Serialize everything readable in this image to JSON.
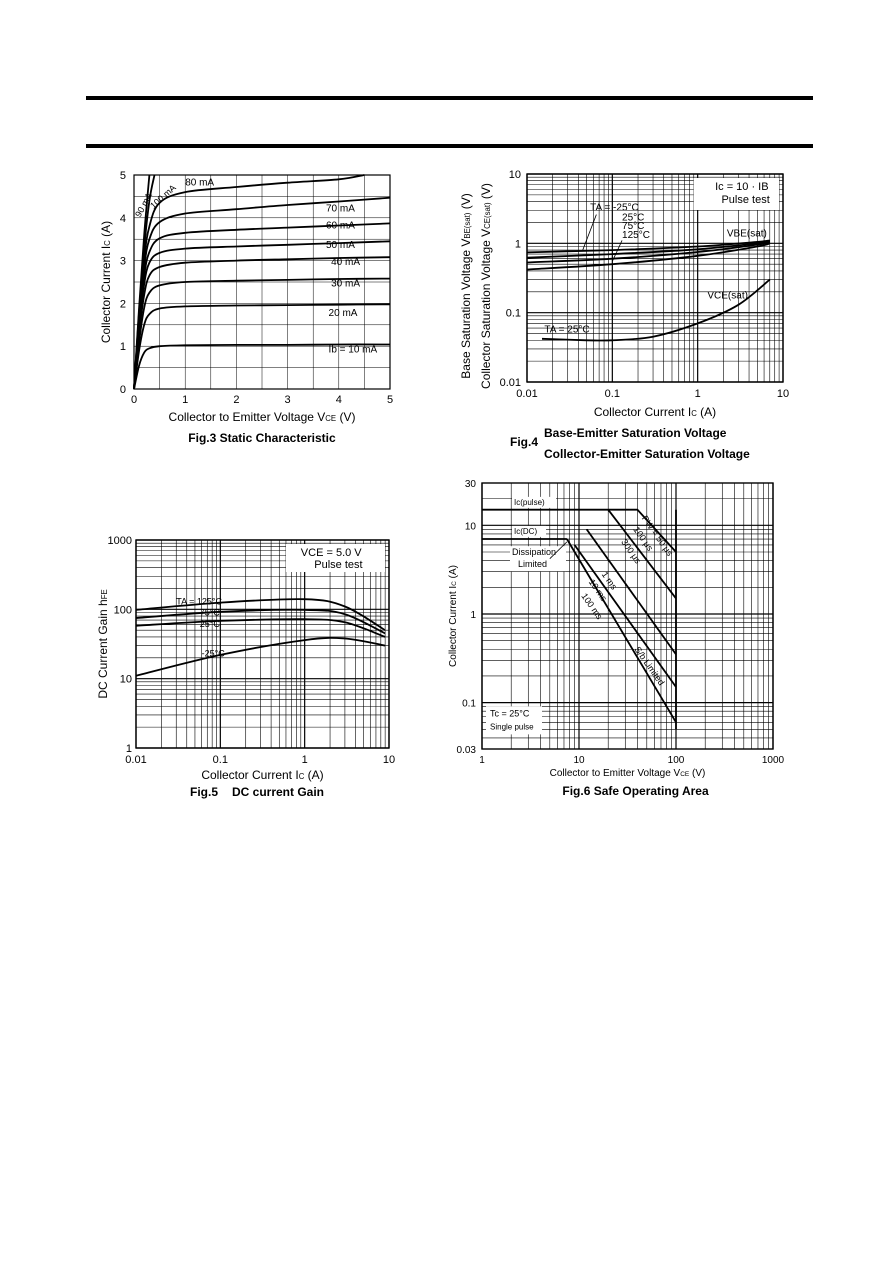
{
  "chart_data": [
    {
      "type": "line",
      "caption": "Fig.3 Static Characteristic",
      "xlabel": "Collector to Emitter Voltage  V",
      "xlabel_sub": "CE",
      "xlabel_unit": "(V)",
      "ylabel": "Collector Current  I",
      "ylabel_sub": "C",
      "ylabel_unit": "(A)",
      "xlim": [
        0,
        5
      ],
      "ylim": [
        0,
        5
      ],
      "x_ticks": [
        0,
        1,
        2,
        3,
        4,
        5
      ],
      "y_ticks": [
        0,
        1,
        2,
        3,
        4,
        5
      ],
      "series": [
        {
          "name": "Ib = 10 mA",
          "x": [
            0,
            0.1,
            0.2,
            0.3,
            0.5,
            1,
            2,
            3,
            4,
            5
          ],
          "y": [
            0,
            0.55,
            0.85,
            0.95,
            1.0,
            1.02,
            1.03,
            1.03,
            1.04,
            1.04
          ]
        },
        {
          "name": "20 mA",
          "x": [
            0,
            0.1,
            0.2,
            0.3,
            0.5,
            1,
            2,
            3,
            4,
            5
          ],
          "y": [
            0,
            0.9,
            1.5,
            1.75,
            1.88,
            1.93,
            1.95,
            1.96,
            1.97,
            1.98
          ]
        },
        {
          "name": "30 mA",
          "x": [
            0,
            0.1,
            0.2,
            0.3,
            0.5,
            1,
            2,
            3,
            4,
            5
          ],
          "y": [
            0,
            1.1,
            1.9,
            2.25,
            2.42,
            2.5,
            2.53,
            2.55,
            2.57,
            2.58
          ]
        },
        {
          "name": "40 mA",
          "x": [
            0,
            0.1,
            0.2,
            0.3,
            0.5,
            1,
            2,
            3,
            4,
            5
          ],
          "y": [
            0,
            1.3,
            2.2,
            2.65,
            2.85,
            2.95,
            3.0,
            3.03,
            3.06,
            3.08
          ]
        },
        {
          "name": "50 mA",
          "x": [
            0,
            0.1,
            0.2,
            0.3,
            0.5,
            1,
            2,
            3,
            4,
            5
          ],
          "y": [
            0,
            1.4,
            2.45,
            2.95,
            3.18,
            3.28,
            3.33,
            3.37,
            3.41,
            3.45
          ]
        },
        {
          "name": "60 mA",
          "x": [
            0,
            0.1,
            0.2,
            0.3,
            0.5,
            1,
            2,
            3,
            4,
            5
          ],
          "y": [
            0,
            1.5,
            2.65,
            3.2,
            3.52,
            3.65,
            3.72,
            3.77,
            3.82,
            3.87
          ]
        },
        {
          "name": "70 mA",
          "x": [
            0,
            0.1,
            0.2,
            0.3,
            0.5,
            1,
            2,
            3,
            4,
            5
          ],
          "y": [
            0,
            1.6,
            2.85,
            3.5,
            3.9,
            4.1,
            4.2,
            4.3,
            4.38,
            4.47
          ]
        },
        {
          "name": "80 mA",
          "x": [
            0,
            0.1,
            0.2,
            0.3,
            0.5,
            1,
            2,
            3,
            4,
            4.5
          ],
          "y": [
            0,
            1.7,
            3.05,
            3.8,
            4.35,
            4.6,
            4.72,
            4.82,
            4.9,
            5.0
          ]
        },
        {
          "name": "90 mA",
          "x": [
            0,
            0.1,
            0.2,
            0.3,
            0.4
          ],
          "y": [
            0,
            1.8,
            3.3,
            4.4,
            5.0
          ]
        },
        {
          "name": "100 mA",
          "x": [
            0,
            0.1,
            0.2,
            0.3
          ],
          "y": [
            0,
            1.9,
            3.6,
            5.0
          ]
        }
      ],
      "labels": [
        "Ib = 10 mA",
        "20 mA",
        "30 mA",
        "40 mA",
        "50 mA",
        "60 mA",
        "70 mA",
        "80 mA",
        "90 mA",
        "100 mA"
      ]
    },
    {
      "type": "line",
      "caption_fig": "Fig.4",
      "caption_line1": "Base-Emitter Saturation Voltage",
      "caption_line2": "Collector-Emitter Saturation Voltage",
      "xlabel": "Collector Current  I",
      "xlabel_sub": "C",
      "xlabel_unit": "(A)",
      "ylabel_outer": "Collector Saturation Voltage  V",
      "ylabel_outer_sub": "CE(sat)",
      "ylabel_outer_unit": "(V)",
      "ylabel_inner": "Base Saturation Voltage  V",
      "ylabel_inner_sub": "BE(sat)",
      "ylabel_inner_unit": "(V)",
      "xscale": "log",
      "yscale": "log",
      "xlim": [
        0.01,
        10
      ],
      "ylim": [
        0.01,
        10
      ],
      "x_ticks": [
        "0.01",
        "0.1",
        "1",
        "10"
      ],
      "y_ticks": [
        "0.01",
        "0.1",
        "1",
        "10"
      ],
      "legend_line1": "Ic = 10 · IB",
      "legend_line2": "Pulse test",
      "temp_labels": [
        "TA = -25°C",
        "25°C",
        "75°C",
        "125°C"
      ],
      "curve_label_vbe": "VBE(sat)",
      "curve_label_vce": "VCE(sat)",
      "curve_label_ta": "TA = 25°C",
      "series": [
        {
          "name": "VBE(sat) TA = -25°C",
          "x": [
            0.01,
            0.1,
            1,
            5,
            7
          ],
          "y": [
            0.74,
            0.8,
            0.9,
            1.05,
            1.1
          ]
        },
        {
          "name": "VBE(sat) 25°C",
          "x": [
            0.01,
            0.1,
            1,
            5,
            7
          ],
          "y": [
            0.62,
            0.7,
            0.82,
            1.0,
            1.06
          ]
        },
        {
          "name": "VBE(sat) 75°C",
          "x": [
            0.01,
            0.1,
            1,
            5,
            7
          ],
          "y": [
            0.53,
            0.6,
            0.75,
            0.96,
            1.03
          ]
        },
        {
          "name": "VBE(sat) 125°C",
          "x": [
            0.01,
            0.1,
            1,
            5,
            7
          ],
          "y": [
            0.42,
            0.5,
            0.66,
            0.9,
            1.0
          ]
        },
        {
          "name": "VCE(sat) TA = 25°C",
          "x": [
            0.015,
            0.05,
            0.1,
            0.3,
            1,
            3,
            7
          ],
          "y": [
            0.042,
            0.04,
            0.04,
            0.045,
            0.07,
            0.13,
            0.3
          ]
        }
      ]
    },
    {
      "type": "line",
      "caption_fig": "Fig.5",
      "caption_text": "DC current Gain",
      "xlabel": "Collector Current  I",
      "xlabel_sub": "C",
      "xlabel_unit": "(A)",
      "ylabel": "DC Current Gain  h",
      "ylabel_sub": "FE",
      "xscale": "log",
      "yscale": "log",
      "xlim": [
        0.01,
        10
      ],
      "ylim": [
        1,
        1000
      ],
      "x_ticks": [
        "0.01",
        "0.1",
        "1",
        "10"
      ],
      "y_ticks": [
        "1",
        "10",
        "100",
        "1000"
      ],
      "legend_line1": "VCE = 5.0 V",
      "legend_line2": "Pulse test",
      "temp_labels": [
        "TA = 125°C",
        "75°C",
        "25°C",
        "-25°C"
      ],
      "series": [
        {
          "name": "TA = 125°C",
          "x": [
            0.01,
            0.1,
            1,
            3,
            9
          ],
          "y": [
            98,
            125,
            140,
            110,
            50
          ]
        },
        {
          "name": "75°C",
          "x": [
            0.01,
            0.1,
            1,
            3,
            9
          ],
          "y": [
            75,
            92,
            98,
            85,
            45
          ]
        },
        {
          "name": "25°C",
          "x": [
            0.01,
            0.1,
            1,
            3,
            9
          ],
          "y": [
            58,
            68,
            72,
            65,
            40
          ]
        },
        {
          "name": "-25°C",
          "x": [
            0.01,
            0.1,
            1,
            3,
            9
          ],
          "y": [
            11,
            22,
            36,
            38,
            30
          ]
        }
      ]
    },
    {
      "type": "line",
      "caption": "Fig.6  Safe Operating Area",
      "xlabel": "Collector to Emitter Voltage  V",
      "xlabel_sub": "CE",
      "xlabel_unit": "(V)",
      "ylabel": "Collector Current  I",
      "ylabel_sub": "C",
      "ylabel_unit": "(A)",
      "xscale": "log",
      "yscale": "log",
      "xlim": [
        1,
        1000
      ],
      "ylim": [
        0.03,
        30
      ],
      "x_ticks": [
        "1",
        "10",
        "100",
        "1000"
      ],
      "y_ticks": [
        "0.03",
        "0.1",
        "1",
        "10",
        "30"
      ],
      "note_line1": "Tc = 25°C",
      "note_line2": "Single pulse",
      "region_labels": {
        "ic_pulse": "Ic(pulse)",
        "ic_dc": "Ic(DC)",
        "dissipation": "Dissipation",
        "limited": "Limited",
        "sb_limited": "S/b Limited",
        "pw_50us": "PW = 50 μs",
        "pw_100us": "100 μs",
        "pw_300us": "300 μs",
        "pw_1ms": "1 ms",
        "pw_10ms": "10 ms",
        "pw_100ms": "100 ms"
      },
      "series": [
        {
          "name": "Ic(pulse)",
          "x": [
            1,
            20
          ],
          "y": [
            15,
            15
          ]
        },
        {
          "name": "Ic(DC)",
          "x": [
            1,
            7.5
          ],
          "y": [
            7,
            7
          ]
        },
        {
          "name": "PW = 50 μs",
          "x": [
            20,
            40,
            100
          ],
          "y": [
            15,
            15,
            5
          ]
        },
        {
          "name": "300 μs",
          "x": [
            20,
            100
          ],
          "y": [
            15,
            1.5
          ]
        },
        {
          "name": "1 ms",
          "x": [
            12,
            100
          ],
          "y": [
            9,
            0.35
          ]
        },
        {
          "name": "10 ms",
          "x": [
            9,
            100
          ],
          "y": [
            6,
            0.15
          ]
        },
        {
          "name": "100 ms",
          "x": [
            7.5,
            100
          ],
          "y": [
            7,
            0.06
          ]
        },
        {
          "name": "VCE max",
          "x": [
            100,
            100
          ],
          "y": [
            0.05,
            15
          ]
        }
      ]
    }
  ]
}
